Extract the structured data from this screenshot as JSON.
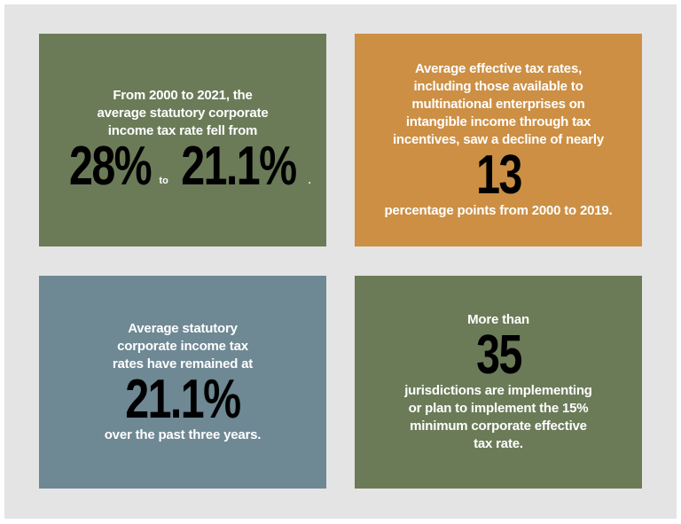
{
  "cards": [
    {
      "before": [
        "From 2000 to 2021, the",
        "average statutory corporate",
        "income tax rate fell from"
      ],
      "big": "28%",
      "connector": "to",
      "big2": "21.1%",
      "end": "."
    },
    {
      "before": [
        "Average effective tax rates,",
        "including those available to",
        "multinational enterprises on",
        "intangible income through tax",
        "incentives, saw a decline of nearly"
      ],
      "big": "13",
      "after": [
        "percentage points from 2000 to 2019."
      ]
    },
    {
      "before": [
        "Average statutory",
        "corporate income tax",
        "rates have remained at"
      ],
      "big": "21.1%",
      "after": [
        "over the past three years."
      ]
    },
    {
      "before": [
        "More than"
      ],
      "big": "35",
      "after": [
        "jurisdictions are implementing",
        "or plan to implement the 15%",
        "minimum corporate effective",
        "tax rate."
      ]
    }
  ]
}
